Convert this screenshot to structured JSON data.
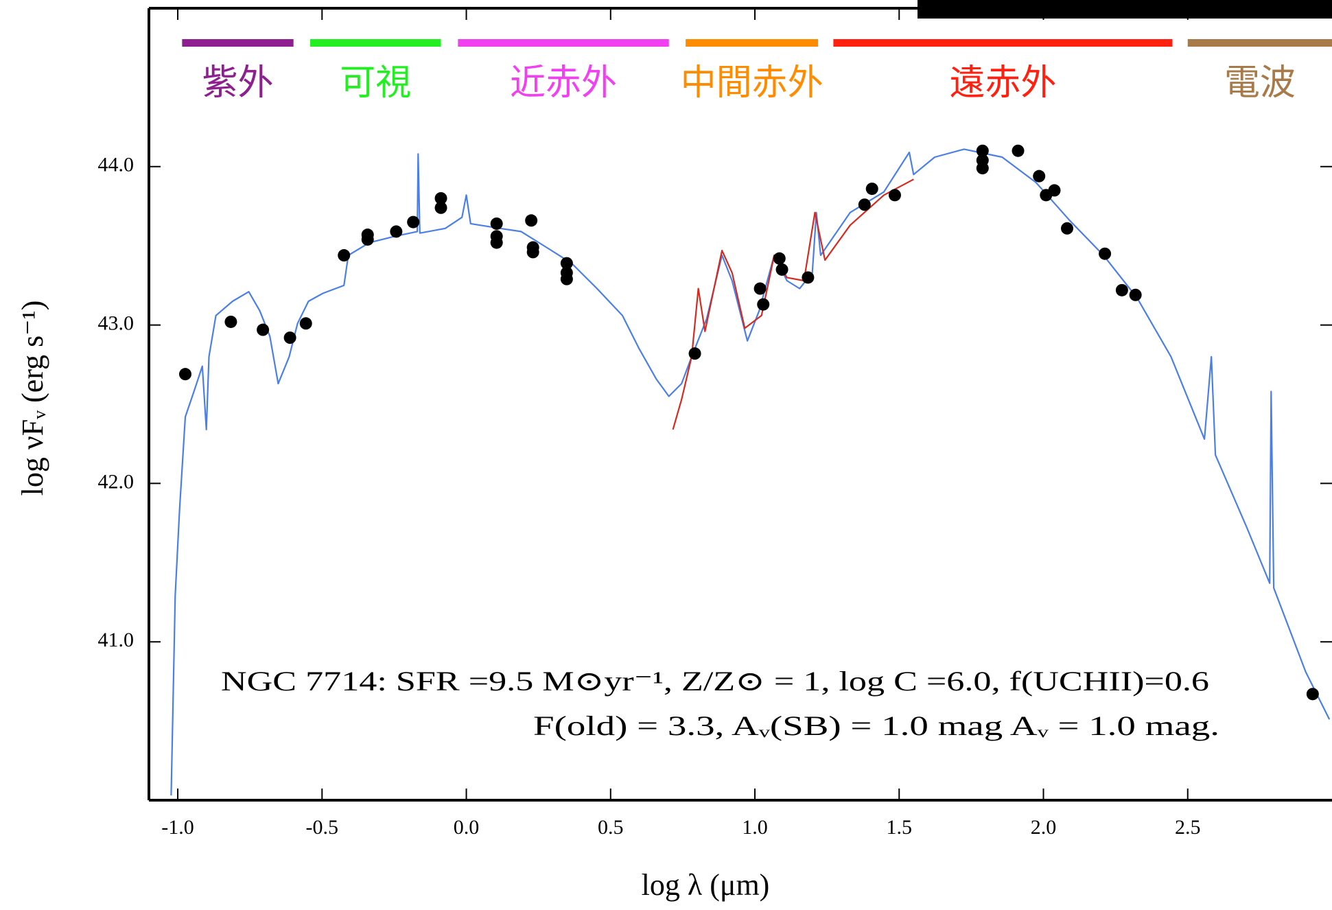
{
  "chart_data": {
    "type": "sed",
    "xlabel": "log λ (μm)",
    "ylabel": "log νFᵥ (erg s⁻¹)",
    "xlim": [
      -1.1,
      3.0
    ],
    "ylim": [
      40.0,
      45.0
    ],
    "xticks": [
      {
        "value": -1.0,
        "label": "-1.0"
      },
      -0.5,
      {
        "value": 0.0,
        "label": "0.0"
      },
      0.5,
      {
        "value": 1.0,
        "label": "1.0"
      },
      1.5,
      {
        "value": 2.0,
        "label": "2.0"
      },
      2.5
    ],
    "yticks": [
      {
        "value": 41.0,
        "label": "41.0"
      },
      {
        "value": 42.0,
        "label": "42.0"
      },
      {
        "value": 43.0,
        "label": "43.0"
      },
      {
        "value": 44.0,
        "label": "44.0"
      }
    ],
    "bands": [
      {
        "label": "紫外",
        "color": "#8e1f8e",
        "xrange": [
          -0.985,
          -0.599
        ]
      },
      {
        "label": "可視",
        "color": "#22ee22",
        "xrange": [
          -0.541,
          -0.088
        ]
      },
      {
        "label": "近赤外",
        "color": "#f040f0",
        "xrange": [
          -0.029,
          0.702
        ]
      },
      {
        "label": "中間赤外",
        "color": "#ff8c00",
        "xrange": [
          0.76,
          1.219
        ]
      },
      {
        "label": "遠赤外",
        "color": "#ff2010",
        "xrange": [
          1.272,
          2.447
        ]
      },
      {
        "label": "電波",
        "color": "#a87a4a",
        "xrange": [
          2.5,
          3.2
        ]
      }
    ],
    "annotations": [
      "NGC 7714: SFR =9.5 M⊙yr⁻¹, Z/Z⊙ = 1, log C =6.0, f(UCHII)=0.6",
      "F(old) = 3.3, Aᵥ(SB) = 1.0 mag  Aᵥ = 1.0 mag."
    ],
    "series": [
      {
        "style": "line",
        "color": "#4a7ee8",
        "x": [
          -1.023,
          -1.009,
          -0.994,
          -0.974,
          -0.944,
          -0.915,
          -0.901,
          -0.892,
          -0.868,
          -0.81,
          -0.754,
          -0.716,
          -0.681,
          -0.652,
          -0.614,
          -0.585,
          -0.547,
          -0.497,
          -0.424,
          -0.409,
          -0.336,
          -0.249,
          -0.17,
          -0.167,
          -0.161,
          -0.073,
          -0.015,
          0.0,
          0.015,
          0.117,
          0.19,
          0.278,
          0.365,
          0.453,
          0.541,
          0.599,
          0.658,
          0.702,
          0.746,
          0.781,
          0.833,
          0.886,
          0.921,
          0.974,
          1.015,
          1.067,
          1.111,
          1.155,
          1.199,
          1.213,
          1.228,
          1.33,
          1.447,
          1.535,
          1.55,
          1.623,
          1.725,
          1.857,
          1.974,
          2.091,
          2.208,
          2.325,
          2.442,
          2.558,
          2.582,
          2.596,
          2.705,
          2.784,
          2.789,
          2.798,
          2.909,
          2.991
        ],
        "values": [
          40.03,
          41.29,
          41.83,
          42.42,
          42.58,
          42.74,
          42.34,
          42.8,
          43.06,
          43.15,
          43.21,
          43.09,
          42.93,
          42.63,
          42.8,
          43.01,
          43.15,
          43.2,
          43.25,
          43.44,
          43.52,
          43.56,
          43.59,
          44.08,
          43.58,
          43.61,
          43.68,
          43.82,
          43.64,
          43.61,
          43.59,
          43.49,
          43.39,
          43.23,
          43.06,
          42.85,
          42.66,
          42.55,
          42.63,
          42.8,
          43.04,
          43.44,
          43.28,
          42.9,
          43.09,
          43.44,
          43.28,
          43.23,
          43.33,
          43.71,
          43.44,
          43.71,
          43.84,
          44.09,
          43.95,
          44.06,
          44.11,
          44.06,
          43.9,
          43.66,
          43.44,
          43.17,
          42.8,
          42.28,
          42.8,
          42.18,
          41.72,
          41.37,
          42.58,
          41.34,
          40.81,
          40.51
        ]
      },
      {
        "style": "line",
        "color": "#d42a20",
        "x": [
          0.716,
          0.746,
          0.781,
          0.804,
          0.827,
          0.886,
          0.921,
          0.965,
          1.023,
          1.067,
          1.111,
          1.17,
          1.208,
          1.243,
          1.33,
          1.447,
          1.55
        ],
        "values": [
          42.34,
          42.53,
          42.8,
          43.23,
          42.96,
          43.47,
          43.33,
          42.98,
          43.06,
          43.44,
          43.3,
          43.28,
          43.71,
          43.41,
          43.63,
          43.82,
          43.92
        ]
      },
      {
        "style": "points",
        "color": "#000000",
        "x": [
          -0.974,
          -0.816,
          -0.705,
          -0.611,
          -0.556,
          -0.424,
          -0.342,
          -0.342,
          -0.243,
          -0.184,
          -0.088,
          -0.088,
          0.105,
          0.105,
          0.105,
          0.225,
          0.231,
          0.231,
          0.348,
          0.348,
          0.348,
          0.792,
          1.018,
          1.029,
          1.085,
          1.094,
          1.184,
          1.38,
          1.406,
          1.485,
          1.789,
          1.789,
          1.789,
          1.912,
          1.985,
          2.009,
          2.038,
          2.082,
          2.213,
          2.272,
          2.319,
          2.933
        ],
        "values": [
          42.69,
          43.02,
          42.97,
          42.92,
          43.01,
          43.44,
          43.57,
          43.54,
          43.59,
          43.65,
          43.8,
          43.74,
          43.64,
          43.56,
          43.52,
          43.66,
          43.49,
          43.46,
          43.39,
          43.33,
          43.29,
          42.82,
          43.23,
          43.13,
          43.42,
          43.35,
          43.3,
          43.76,
          43.86,
          43.82,
          44.1,
          44.04,
          43.99,
          44.1,
          43.94,
          43.82,
          43.85,
          43.61,
          43.45,
          43.22,
          43.19,
          40.67
        ]
      }
    ]
  }
}
